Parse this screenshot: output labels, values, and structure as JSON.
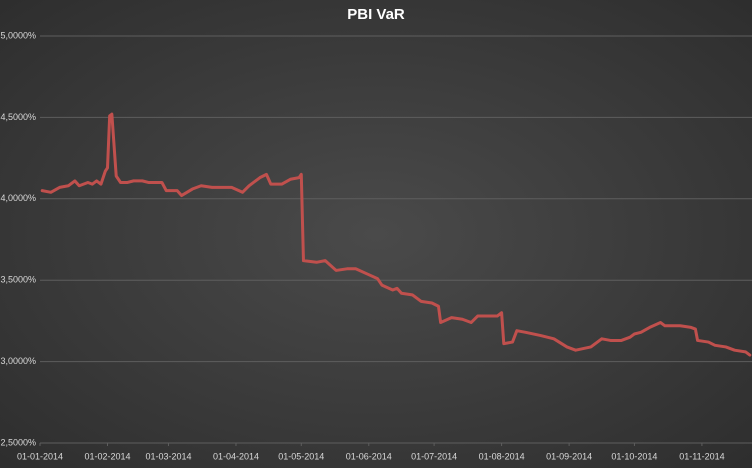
{
  "chart_data": {
    "type": "line",
    "title": "PBI VaR",
    "x": [
      "2014-01-02",
      "2014-01-06",
      "2014-01-10",
      "2014-01-14",
      "2014-01-17",
      "2014-01-19",
      "2014-01-23",
      "2014-01-25",
      "2014-01-27",
      "2014-01-29",
      "2014-01-31",
      "2014-02-01",
      "2014-02-02",
      "2014-02-03",
      "2014-02-05",
      "2014-02-07",
      "2014-02-10",
      "2014-02-13",
      "2014-02-17",
      "2014-02-20",
      "2014-02-24",
      "2014-02-26",
      "2014-02-28",
      "2014-03-05",
      "2014-03-07",
      "2014-03-12",
      "2014-03-16",
      "2014-03-21",
      "2014-03-26",
      "2014-03-30",
      "2014-04-04",
      "2014-04-07",
      "2014-04-12",
      "2014-04-15",
      "2014-04-17",
      "2014-04-22",
      "2014-04-26",
      "2014-04-30",
      "2014-05-01",
      "2014-05-02",
      "2014-05-08",
      "2014-05-12",
      "2014-05-17",
      "2014-05-22",
      "2014-05-26",
      "2014-05-31",
      "2014-06-05",
      "2014-06-07",
      "2014-06-12",
      "2014-06-14",
      "2014-06-16",
      "2014-06-21",
      "2014-06-25",
      "2014-06-30",
      "2014-07-03",
      "2014-07-04",
      "2014-07-09",
      "2014-07-14",
      "2014-07-18",
      "2014-07-21",
      "2014-07-25",
      "2014-07-30",
      "2014-08-01",
      "2014-08-02",
      "2014-08-06",
      "2014-08-08",
      "2014-08-12",
      "2014-08-19",
      "2014-08-25",
      "2014-08-31",
      "2014-09-04",
      "2014-09-11",
      "2014-09-14",
      "2014-09-16",
      "2014-09-20",
      "2014-09-25",
      "2014-09-29",
      "2014-10-01",
      "2014-10-04",
      "2014-10-08",
      "2014-10-13",
      "2014-10-15",
      "2014-10-22",
      "2014-10-27",
      "2014-10-29",
      "2014-10-30",
      "2014-11-04",
      "2014-11-07",
      "2014-11-12",
      "2014-11-16",
      "2014-11-21",
      "2014-11-23"
    ],
    "series": [
      {
        "name": "PBI VaR",
        "color": "#c0504d",
        "values": [
          4.05,
          4.04,
          4.07,
          4.08,
          4.11,
          4.08,
          4.1,
          4.09,
          4.11,
          4.09,
          4.17,
          4.19,
          4.51,
          4.52,
          4.14,
          4.1,
          4.1,
          4.11,
          4.11,
          4.1,
          4.1,
          4.1,
          4.05,
          4.05,
          4.02,
          4.06,
          4.08,
          4.07,
          4.07,
          4.07,
          4.04,
          4.08,
          4.13,
          4.15,
          4.09,
          4.09,
          4.12,
          4.13,
          4.15,
          3.62,
          3.61,
          3.62,
          3.56,
          3.57,
          3.57,
          3.54,
          3.51,
          3.47,
          3.44,
          3.45,
          3.42,
          3.41,
          3.37,
          3.36,
          3.34,
          3.24,
          3.27,
          3.26,
          3.24,
          3.28,
          3.28,
          3.28,
          3.3,
          3.11,
          3.12,
          3.19,
          3.18,
          3.16,
          3.14,
          3.09,
          3.07,
          3.09,
          3.12,
          3.14,
          3.13,
          3.13,
          3.15,
          3.17,
          3.18,
          3.21,
          3.24,
          3.22,
          3.22,
          3.21,
          3.2,
          3.13,
          3.12,
          3.1,
          3.09,
          3.07,
          3.06,
          3.04
        ]
      }
    ],
    "xlim": [
      "2014-01-01",
      "2014-11-24"
    ],
    "xticks": [
      {
        "value": "2014-01-01",
        "label": "01-01-2014"
      },
      {
        "value": "2014-02-01",
        "label": "01-02-2014"
      },
      {
        "value": "2014-03-01",
        "label": "01-03-2014"
      },
      {
        "value": "2014-04-01",
        "label": "01-04-2014"
      },
      {
        "value": "2014-05-01",
        "label": "01-05-2014"
      },
      {
        "value": "2014-06-01",
        "label": "01-06-2014"
      },
      {
        "value": "2014-07-01",
        "label": "01-07-2014"
      },
      {
        "value": "2014-08-01",
        "label": "01-08-2014"
      },
      {
        "value": "2014-09-01",
        "label": "01-09-2014"
      },
      {
        "value": "2014-10-01",
        "label": "01-10-2014"
      },
      {
        "value": "2014-11-01",
        "label": "01-11-2014"
      }
    ],
    "ylim": [
      2.5,
      5.0
    ],
    "yticks": [
      {
        "value": 2.5,
        "label": "2,5000%"
      },
      {
        "value": 3.0,
        "label": "3,0000%"
      },
      {
        "value": 3.5,
        "label": "3,5000%"
      },
      {
        "value": 4.0,
        "label": "4,0000%"
      },
      {
        "value": 4.5,
        "label": "4,5000%"
      },
      {
        "value": 5.0,
        "label": "5,0000%"
      }
    ],
    "grid": true
  }
}
